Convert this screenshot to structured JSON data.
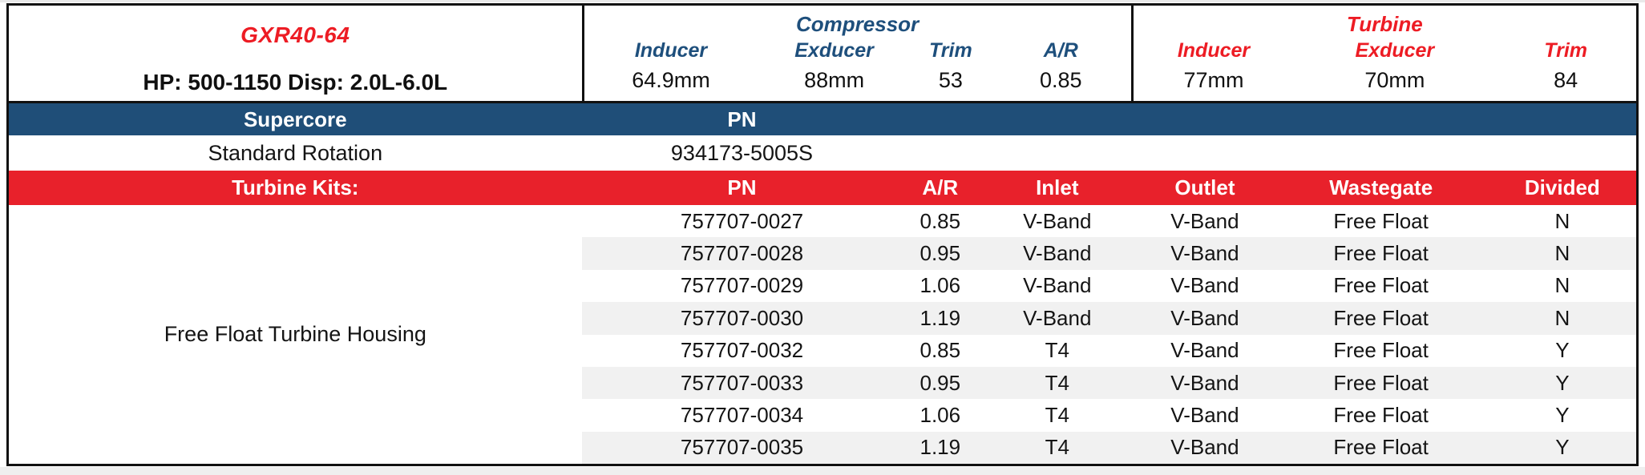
{
  "product": {
    "model": "GXR40-64",
    "specs_line": "HP: 500-1150 Disp: 2.0L-6.0L"
  },
  "compressor": {
    "title": "Compressor",
    "columns": [
      "Inducer",
      "Exducer",
      "Trim",
      "A/R"
    ],
    "values": [
      "64.9mm",
      "88mm",
      "53",
      "0.85"
    ]
  },
  "turbine": {
    "title": "Turbine",
    "columns": [
      "Inducer",
      "Exducer",
      "Trim"
    ],
    "values": [
      "77mm",
      "70mm",
      "84"
    ]
  },
  "supercore": {
    "label": "Supercore",
    "pn_header": "PN",
    "rows": [
      {
        "name": "Standard Rotation",
        "pn": "934173-5005S"
      }
    ]
  },
  "turbine_kits": {
    "label": "Turbine Kits:",
    "columns": [
      "PN",
      "A/R",
      "Inlet",
      "Outlet",
      "Wastegate",
      "Divided"
    ],
    "group_label": "Free Float Turbine Housing",
    "rows": [
      [
        "757707-0027",
        "0.85",
        "V-Band",
        "V-Band",
        "Free Float",
        "N"
      ],
      [
        "757707-0028",
        "0.95",
        "V-Band",
        "V-Band",
        "Free Float",
        "N"
      ],
      [
        "757707-0029",
        "1.06",
        "V-Band",
        "V-Band",
        "Free Float",
        "N"
      ],
      [
        "757707-0030",
        "1.19",
        "V-Band",
        "V-Band",
        "Free Float",
        "N"
      ],
      [
        "757707-0032",
        "0.85",
        "T4",
        "V-Band",
        "Free Float",
        "Y"
      ],
      [
        "757707-0033",
        "0.95",
        "T4",
        "V-Band",
        "Free Float",
        "Y"
      ],
      [
        "757707-0034",
        "1.06",
        "T4",
        "V-Band",
        "Free Float",
        "Y"
      ],
      [
        "757707-0035",
        "1.19",
        "T4",
        "V-Band",
        "Free Float",
        "Y"
      ]
    ]
  },
  "colors": {
    "band_blue": "#1F4E78",
    "band_red": "#E8212B",
    "text_red": "#ED1C24",
    "text_blue": "#1E4F7C",
    "row_stripe": "#F1F1F1",
    "border": "#111111"
  }
}
